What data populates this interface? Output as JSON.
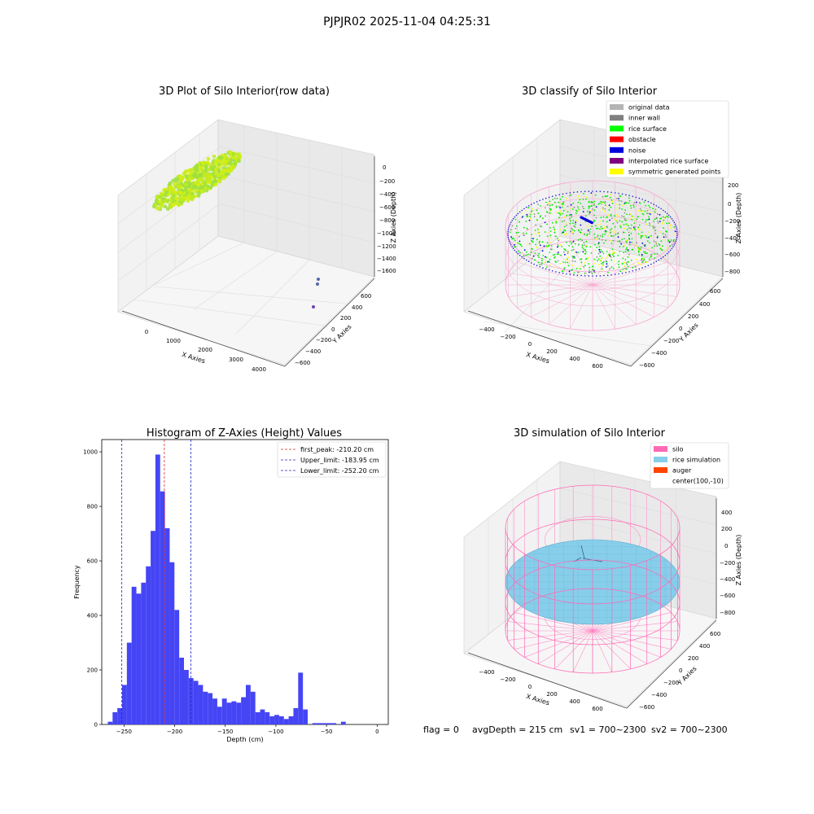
{
  "figure_title": "PJPJR02 2025-11-04 04:25:31",
  "footer": {
    "flag": "flag = 0",
    "avg_depth": "avgDepth = 215 cm",
    "sv1": "sv1 = 700~2300",
    "sv2": "sv2 = 700~2300"
  },
  "chart_data": [
    {
      "type": "scatter",
      "title": "3D Plot of Silo Interior(row data)",
      "xlabel": "X Axies",
      "ylabel": "Y Axies",
      "zlabel": "Z Axies (Depth)",
      "x_ticks": [
        "0",
        "1000",
        "2000",
        "3000",
        "4000"
      ],
      "y_ticks": [
        "600",
        "400",
        "200",
        "0",
        "−200",
        "−400",
        "−600"
      ],
      "z_ticks": [
        "0",
        "−200",
        "−400",
        "−600",
        "−800",
        "−1000",
        "−1200",
        "−1400",
        "−1600"
      ],
      "colors": {
        "points": "#c8ee1e",
        "highlight": "#90e040",
        "outliers": "#5566aa"
      }
    },
    {
      "type": "scatter",
      "title": "3D classify of Silo Interior",
      "xlabel": "X Axies",
      "ylabel": "Y Axies",
      "zlabel": "Z Axies (Depth)",
      "x_ticks": [
        "−400",
        "−200",
        "0",
        "200",
        "400",
        "600"
      ],
      "y_ticks": [
        "600",
        "400",
        "200",
        "0",
        "−200",
        "−400",
        "−600"
      ],
      "z_ticks": [
        "200",
        "0",
        "−200",
        "−400",
        "−600",
        "−800"
      ],
      "legend": [
        {
          "label": "original data",
          "color": "#b4b4b4"
        },
        {
          "label": "inner wall",
          "color": "#808080"
        },
        {
          "label": "rice surface",
          "color": "#00ff00"
        },
        {
          "label": "obstacle",
          "color": "#ff0000"
        },
        {
          "label": "noise",
          "color": "#0000dd"
        },
        {
          "label": "interpolated rice surface",
          "color": "#800080"
        },
        {
          "label": "symmetric generated points",
          "color": "#ffff00"
        }
      ],
      "legend_position": "top-right"
    },
    {
      "type": "bar",
      "title": "Histogram of Z-Axies (Height) Values",
      "xlabel": "Depth (cm)",
      "ylabel": "Frequency",
      "xlim": [
        -272,
        11
      ],
      "ylim": [
        0,
        1045
      ],
      "x_ticks": [
        -250,
        -200,
        -150,
        -100,
        -50,
        0
      ],
      "x_tick_labels": [
        "−250",
        "−200",
        "−150",
        "−100",
        "−50",
        "0"
      ],
      "y_ticks": [
        0,
        200,
        400,
        600,
        800,
        1000
      ],
      "bin_start": -266,
      "bin_width": 4.7,
      "values": [
        10,
        45,
        60,
        145,
        300,
        505,
        480,
        520,
        580,
        710,
        990,
        855,
        720,
        595,
        420,
        245,
        200,
        170,
        160,
        145,
        120,
        115,
        95,
        65,
        95,
        80,
        85,
        80,
        100,
        145,
        120,
        45,
        55,
        45,
        30,
        35,
        30,
        20,
        30,
        60,
        190,
        55,
        0,
        5,
        5,
        5,
        5,
        5,
        0,
        10,
        0
      ],
      "bar_color": "#4545f5",
      "lines": [
        {
          "x": -210.2,
          "color": "#dd2222",
          "label": "first_peak: -210.20 cm"
        },
        {
          "x": -183.95,
          "color": "#2222cc",
          "label": "Upper_limit: -183.95 cm"
        },
        {
          "x": -252.2,
          "color": "#2222cc",
          "label": "Lower_limit: -252.20 cm"
        }
      ],
      "legend_position": "top-right"
    },
    {
      "type": "area",
      "title": "3D simulation of Silo Interior",
      "xlabel": "X Axies",
      "ylabel": "Y Axies",
      "zlabel": "Z Axies (Depth)",
      "x_ticks": [
        "−400",
        "−200",
        "0",
        "200",
        "400",
        "600"
      ],
      "y_ticks": [
        "600",
        "400",
        "200",
        "0",
        "−200",
        "−400",
        "−600"
      ],
      "z_ticks": [
        "400",
        "200",
        "0",
        "−200",
        "−400",
        "−600",
        "−800"
      ],
      "legend": [
        {
          "label": "silo",
          "color": "#ff69b4"
        },
        {
          "label": "rice simulation",
          "color": "#87ceeb"
        },
        {
          "label": "auger",
          "color": "#ff4500"
        },
        {
          "label": "center(100,-10)",
          "color": ""
        }
      ],
      "legend_position": "top-right"
    }
  ]
}
